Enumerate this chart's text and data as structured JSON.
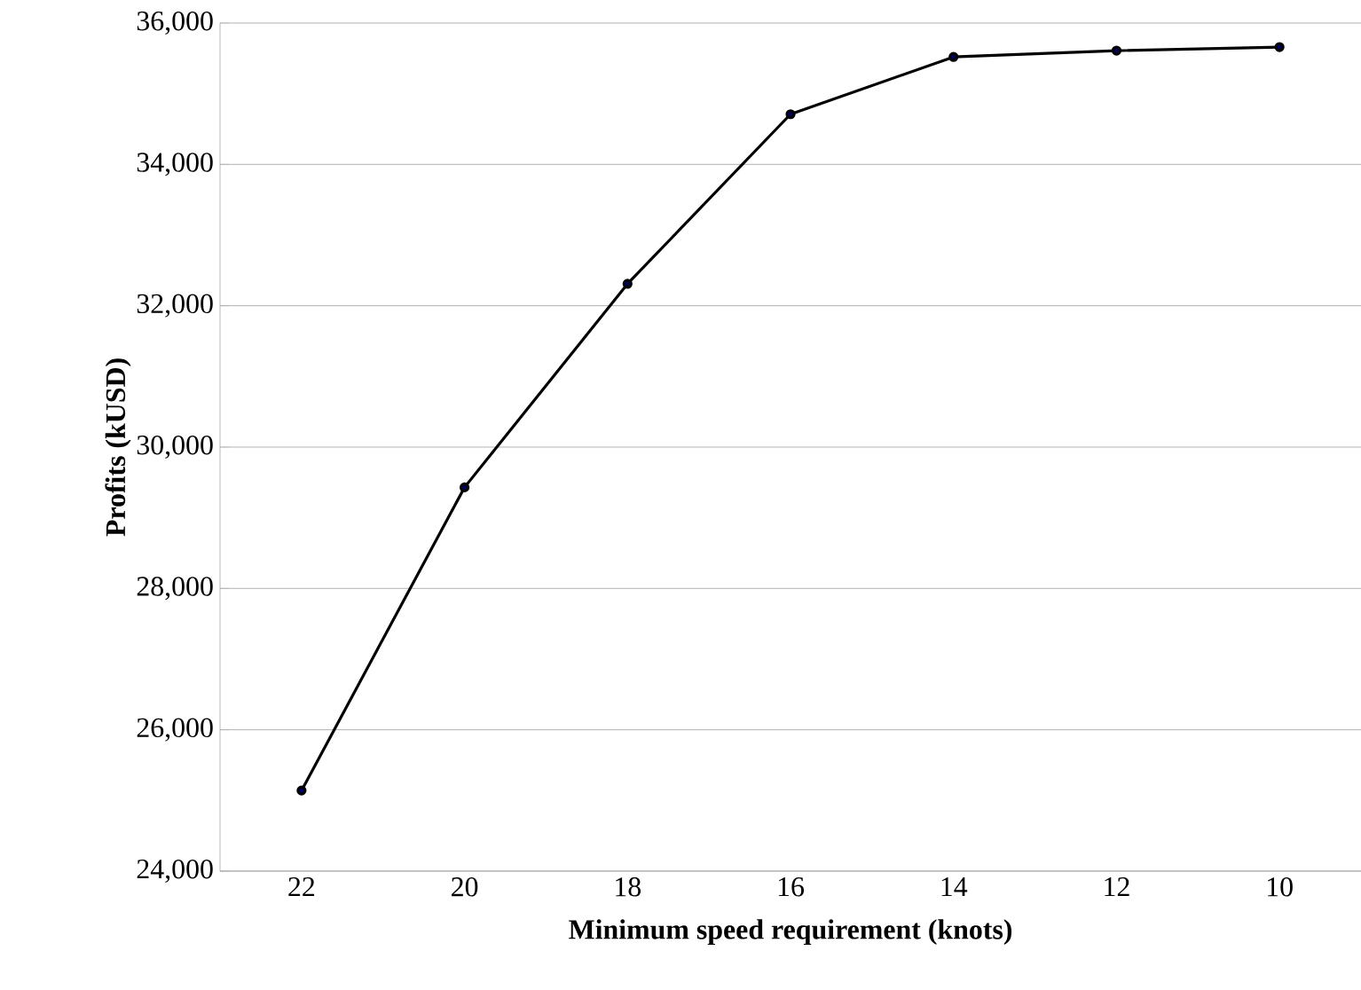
{
  "chart_data": {
    "type": "line",
    "xlabel": "Minimum speed requirement (knots)",
    "ylabel": "Profits (kUSD)",
    "categories": [
      "22",
      "20",
      "18",
      "16",
      "14",
      "12",
      "10"
    ],
    "series": [
      {
        "color": "#000000",
        "values": [
          25140,
          29430,
          32310,
          34710,
          35520,
          35610,
          35660
        ]
      }
    ],
    "ylim": [
      24000,
      36000
    ],
    "yticks": [
      {
        "value": 24000,
        "label": "24,000"
      },
      {
        "value": 26000,
        "label": "26,000"
      },
      {
        "value": 28000,
        "label": "28,000"
      },
      {
        "value": 30000,
        "label": "30,000"
      },
      {
        "value": 32000,
        "label": "32,000"
      },
      {
        "value": 34000,
        "label": "34,000"
      },
      {
        "value": 36000,
        "label": "36,000"
      }
    ],
    "grid": "y",
    "marker": "circle",
    "line_style": "solid"
  }
}
